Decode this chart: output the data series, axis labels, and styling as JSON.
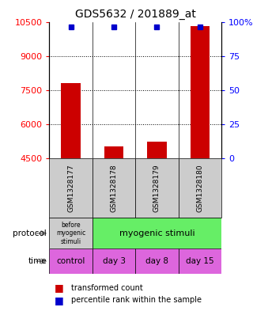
{
  "title": "GDS5632 / 201889_at",
  "samples": [
    "GSM1328177",
    "GSM1328178",
    "GSM1328179",
    "GSM1328180"
  ],
  "transformed_counts": [
    7800,
    5050,
    5250,
    10300
  ],
  "percentile_ranks": [
    99,
    99,
    99,
    99
  ],
  "ymin": 4500,
  "ymax": 10500,
  "y_ticks": [
    4500,
    6000,
    7500,
    9000,
    10500
  ],
  "y_right_ticks": [
    0,
    25,
    50,
    75,
    100
  ],
  "y_right_labels": [
    "0",
    "25",
    "50",
    "75",
    "100%"
  ],
  "dotted_lines": [
    6000,
    7500,
    9000
  ],
  "bar_color": "#cc0000",
  "percentile_color": "#0000cc",
  "protocol_labels": [
    "before\nmyogenic\nstimuli",
    "myogenic stimuli"
  ],
  "protocol_colors": [
    "#cccccc",
    "#66ee66"
  ],
  "time_labels": [
    "control",
    "day 3",
    "day 8",
    "day 15"
  ],
  "time_color": "#dd66dd",
  "sample_bg_color": "#cccccc",
  "legend_red": "transformed count",
  "legend_blue": "percentile rank within the sample",
  "left_label_protocol": "protocol",
  "left_label_time": "time"
}
